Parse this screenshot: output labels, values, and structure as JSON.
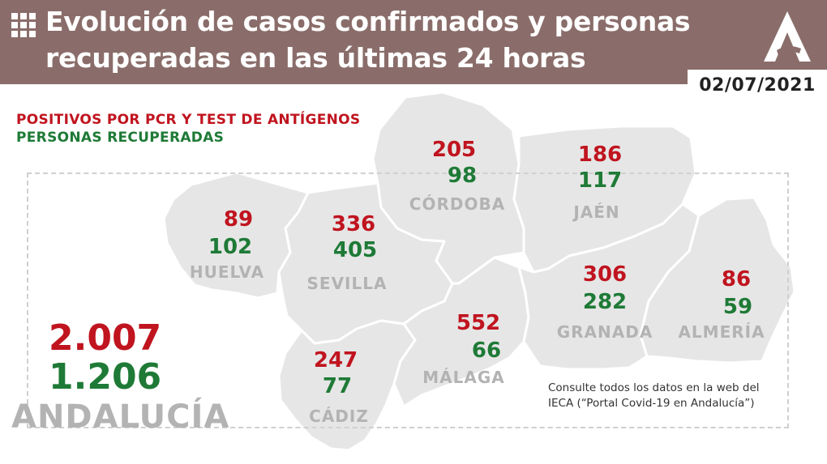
{
  "header": {
    "title_line1": "Evolución de casos confirmados y personas",
    "title_line2": "recuperadas en las últimas 24 horas",
    "date": "02/07/2021",
    "background_color": "#8a6d6a",
    "icon": "grid-icon",
    "logo": "junta-andalucia-logo"
  },
  "legend": {
    "positives_label": "POSITIVOS POR PCR Y TEST DE ANTÍGENOS",
    "recovered_label": "PERSONAS RECUPERADAS",
    "positives_color": "#c0141f",
    "recovered_color": "#1e7a36"
  },
  "provinces": {
    "huelva": {
      "name": "HUELVA",
      "positives": "89",
      "recovered": "102"
    },
    "sevilla": {
      "name": "SEVILLA",
      "positives": "336",
      "recovered": "405"
    },
    "cordoba": {
      "name": "CÓRDOBA",
      "positives": "205",
      "recovered": "98"
    },
    "jaen": {
      "name": "JAÉN",
      "positives": "186",
      "recovered": "117"
    },
    "cadiz": {
      "name": "CÁDIZ",
      "positives": "247",
      "recovered": "77"
    },
    "malaga": {
      "name": "MÁLAGA",
      "positives": "552",
      "recovered": "66"
    },
    "granada": {
      "name": "GRANADA",
      "positives": "306",
      "recovered": "282"
    },
    "almeria": {
      "name": "ALMERÍA",
      "positives": "86",
      "recovered": "59"
    }
  },
  "total": {
    "name": "ANDALUCÍA",
    "positives": "2.007",
    "recovered": "1.206"
  },
  "footnote": {
    "line1": "Consulte todos los datos en la web del",
    "line2": "IECA (“Portal Covid-19 en Andalucía”)"
  }
}
